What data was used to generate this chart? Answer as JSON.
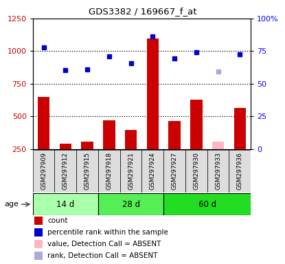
{
  "title": "GDS3382 / 169667_f_at",
  "samples": [
    "GSM297909",
    "GSM297912",
    "GSM297915",
    "GSM297918",
    "GSM297921",
    "GSM297924",
    "GSM297927",
    "GSM297930",
    "GSM297933",
    "GSM297936"
  ],
  "bar_values": [
    650,
    290,
    310,
    470,
    395,
    1095,
    465,
    630,
    310,
    565
  ],
  "bar_absent": [
    false,
    false,
    false,
    false,
    false,
    false,
    false,
    false,
    true,
    false
  ],
  "dot_values": [
    1030,
    855,
    860,
    960,
    910,
    1115,
    945,
    990,
    845,
    975
  ],
  "dot_absent": [
    false,
    false,
    false,
    false,
    false,
    false,
    false,
    false,
    true,
    false
  ],
  "age_groups": [
    {
      "label": "14 d",
      "start": 0,
      "end": 3,
      "color": "#AAFFAA"
    },
    {
      "label": "28 d",
      "start": 3,
      "end": 6,
      "color": "#55EE55"
    },
    {
      "label": "60 d",
      "start": 6,
      "end": 10,
      "color": "#22DD22"
    }
  ],
  "ylim_left": [
    250,
    1250
  ],
  "ylim_right": [
    0,
    100
  ],
  "yticks_left": [
    250,
    500,
    750,
    1000,
    1250
  ],
  "yticks_right": [
    0,
    25,
    50,
    75,
    100
  ],
  "ytick_labels_right": [
    "0",
    "25",
    "50",
    "75",
    "100%"
  ],
  "bar_color": "#CC0000",
  "bar_absent_color": "#FFB6C1",
  "dot_color": "#0000CC",
  "dot_absent_color": "#AAAADD",
  "dotted_line_values": [
    500,
    750,
    1000
  ],
  "plot_bg": "#FFFFFF",
  "tick_label_bg": "#DDDDDD",
  "legend_items": [
    {
      "color": "#CC0000",
      "label": "count"
    },
    {
      "color": "#0000CC",
      "label": "percentile rank within the sample"
    },
    {
      "color": "#FFB6C1",
      "label": "value, Detection Call = ABSENT"
    },
    {
      "color": "#AAAADD",
      "label": "rank, Detection Call = ABSENT"
    }
  ]
}
